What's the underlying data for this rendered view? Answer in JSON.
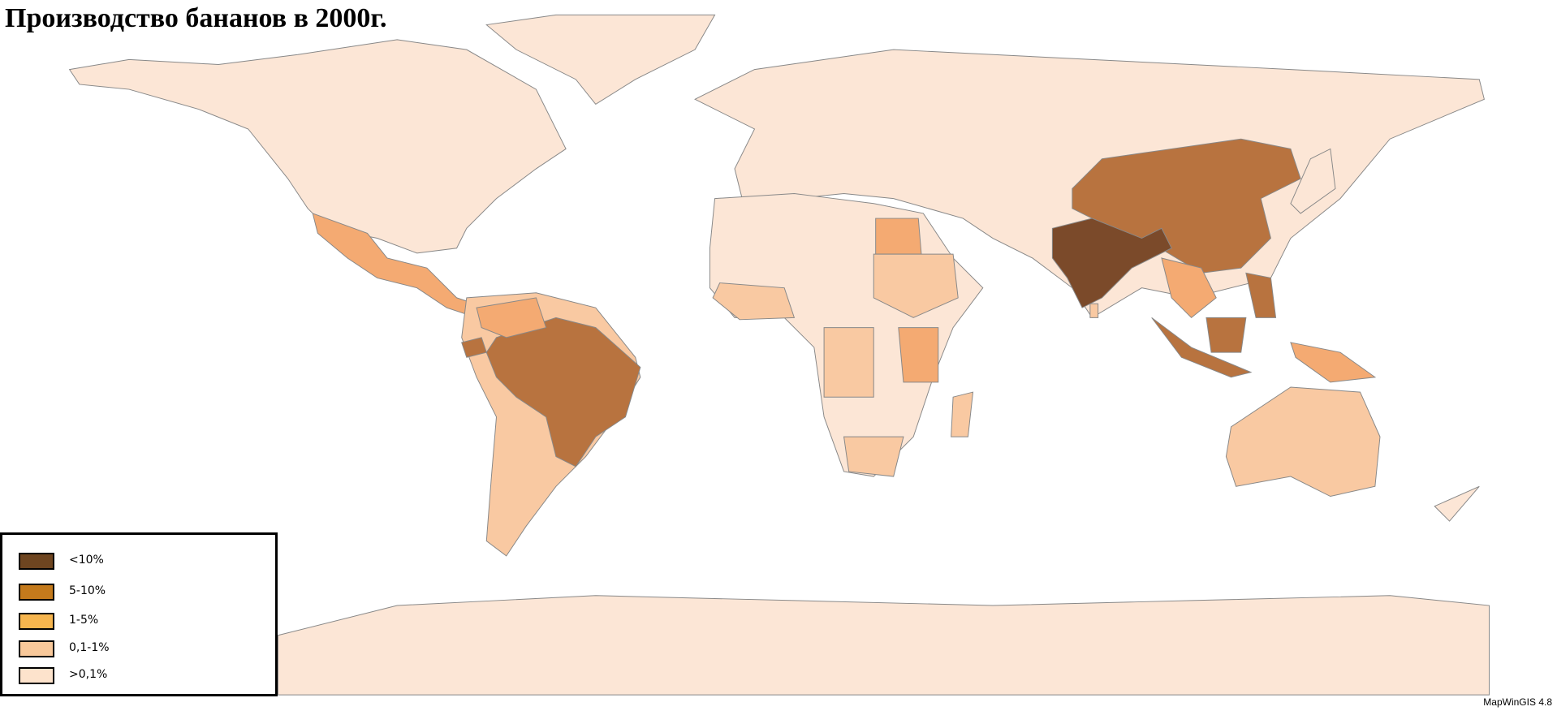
{
  "title": "Производство бананов в 2000г.",
  "legend": {
    "items": [
      {
        "label": "<10%",
        "color": "#6e4520"
      },
      {
        "label": "5-10%",
        "color": "#c47a1c"
      },
      {
        "label": "1-5%",
        "color": "#f6b54e"
      },
      {
        "label": "0,1-1%",
        "color": "#f8c89a"
      },
      {
        "label": ">0,1%",
        "color": "#fde3cc"
      }
    ]
  },
  "footer": "MapWinGIS 4.8"
}
